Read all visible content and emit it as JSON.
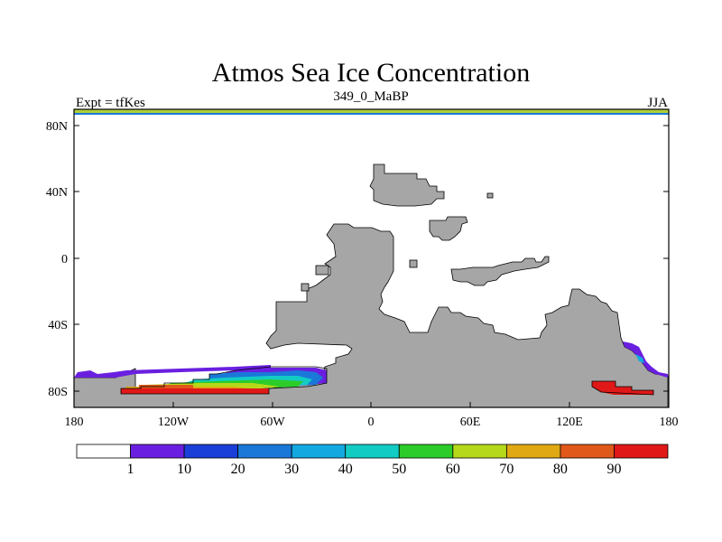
{
  "title": "Atmos Sea Ice Concentration",
  "left_label": "Expt = tfKes",
  "center_label": "349_0_MaBP",
  "right_label": "JJA",
  "x_ticks": [
    "180",
    "120W",
    "60W",
    "0",
    "60E",
    "120E",
    "180"
  ],
  "y_ticks": [
    "80N",
    "40N",
    "0",
    "40S",
    "80S"
  ],
  "colorbar": {
    "labels": [
      "1",
      "10",
      "20",
      "30",
      "40",
      "50",
      "60",
      "70",
      "80",
      "90"
    ],
    "colors": [
      "#ffffff",
      "#6a1fe0",
      "#1a3ed8",
      "#1a78d8",
      "#13a8e0",
      "#12ccc4",
      "#2ccc2a",
      "#b6d81a",
      "#e0a812",
      "#e0581a",
      "#e01818"
    ]
  },
  "land_color": "#a6a6a6",
  "ocean_color": "#ffffff"
}
